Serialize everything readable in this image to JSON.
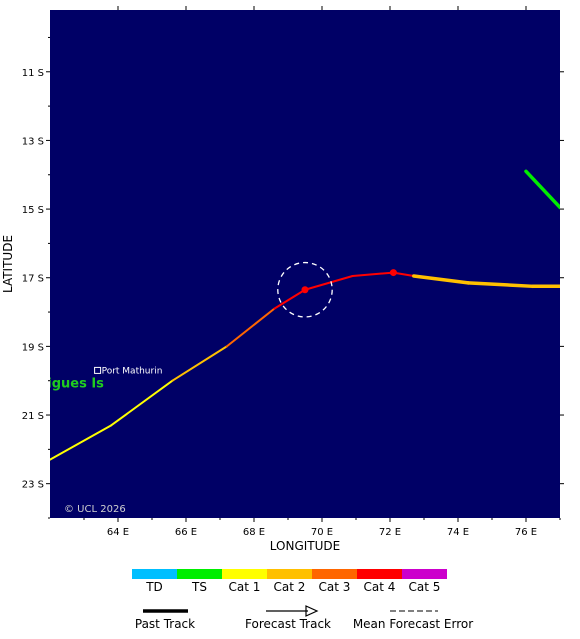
{
  "map": {
    "title": "",
    "xlabel": "LONGITUDE",
    "ylabel": "LATITUDE",
    "copyright": "© UCL 2026",
    "background_color": "#000066",
    "lon_range": [
      62,
      77
    ],
    "lat_range_south": [
      9.2,
      24.0
    ],
    "lon_ticks": [
      {
        "value": 64,
        "label": "64 E"
      },
      {
        "value": 66,
        "label": "66 E"
      },
      {
        "value": 68,
        "label": "68 E"
      },
      {
        "value": 70,
        "label": "70 E"
      },
      {
        "value": 72,
        "label": "72 E"
      },
      {
        "value": 74,
        "label": "74 E"
      },
      {
        "value": 76,
        "label": "76 E"
      }
    ],
    "lat_ticks": [
      {
        "value": 11,
        "label": "11 S"
      },
      {
        "value": 13,
        "label": "13 S"
      },
      {
        "value": 15,
        "label": "15 S"
      },
      {
        "value": 17,
        "label": "17 S"
      },
      {
        "value": 19,
        "label": "19 S"
      },
      {
        "value": 21,
        "label": "21 S"
      },
      {
        "value": 23,
        "label": "23 S"
      }
    ],
    "places": [
      {
        "name": "Port Mathurin",
        "lon": 63.4,
        "lat": 19.7
      }
    ],
    "islands": [
      {
        "name": "Rodrigues Is",
        "lon": 60.9,
        "lat": 20.05
      }
    ]
  },
  "tracks": {
    "past": [
      {
        "lon": 62.0,
        "lat": 22.3,
        "category": "Cat 1"
      },
      {
        "lon": 63.8,
        "lat": 21.3,
        "category": "Cat 1"
      },
      {
        "lon": 65.6,
        "lat": 20.0,
        "category": "Cat 1"
      },
      {
        "lon": 67.2,
        "lat": 19.0,
        "category": "Cat 2"
      },
      {
        "lon": 68.6,
        "lat": 17.9,
        "category": "Cat 3"
      },
      {
        "lon": 69.5,
        "lat": 17.35,
        "category": "Cat 4"
      },
      {
        "lon": 70.9,
        "lat": 16.95,
        "category": "Cat 4"
      },
      {
        "lon": 72.1,
        "lat": 16.85,
        "category": "Cat 4"
      },
      {
        "lon": 72.7,
        "lat": 16.95,
        "category": "Cat 4"
      }
    ],
    "forecast": [
      {
        "lon": 72.7,
        "lat": 16.95,
        "category": "Cat 1"
      },
      {
        "lon": 74.3,
        "lat": 17.15,
        "category": "Cat 2"
      },
      {
        "lon": 76.2,
        "lat": 17.25,
        "category": "Cat 2"
      },
      {
        "lon": 77.0,
        "lat": 17.25,
        "category": "Cat 2"
      }
    ],
    "other": [
      {
        "lon": 76.0,
        "lat": 13.9,
        "category": "TS"
      },
      {
        "lon": 77.0,
        "lat": 14.95,
        "category": "TS"
      }
    ],
    "positions": [
      {
        "lon": 69.5,
        "lat": 17.35,
        "category": "Cat 4"
      },
      {
        "lon": 72.1,
        "lat": 16.85,
        "category": "Cat 4"
      }
    ],
    "error_circle": {
      "lon": 69.5,
      "lat": 17.35,
      "radius_deg": 0.8
    }
  },
  "legend": {
    "categories": [
      {
        "label": "TD",
        "color": "#00bfff"
      },
      {
        "label": "TS",
        "color": "#00ee00"
      },
      {
        "label": "Cat 1",
        "color": "#ffff00"
      },
      {
        "label": "Cat 2",
        "color": "#ffc000"
      },
      {
        "label": "Cat 3",
        "color": "#ff6600"
      },
      {
        "label": "Cat 4",
        "color": "#ff0000"
      },
      {
        "label": "Cat 5",
        "color": "#cc00cc"
      }
    ],
    "past_track_label": "Past Track",
    "forecast_track_label": "Forecast Track",
    "error_label": "Mean Forecast Error"
  }
}
